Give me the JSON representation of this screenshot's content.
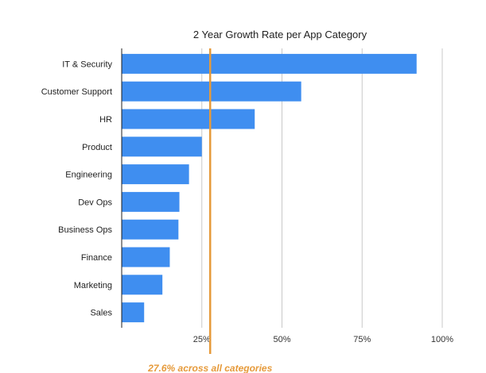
{
  "chart_data": {
    "type": "bar",
    "orientation": "horizontal",
    "title": "2 Year Growth Rate per App Category",
    "categories": [
      "IT & Security",
      "Customer Support",
      "HR",
      "Product",
      "Engineering",
      "Dev Ops",
      "Business Ops",
      "Finance",
      "Marketing",
      "Sales"
    ],
    "values": [
      92,
      56,
      41.5,
      25,
      21,
      18,
      17.7,
      15,
      12.7,
      7
    ],
    "xlim": [
      0,
      100
    ],
    "x_ticks": [
      25,
      50,
      75,
      100
    ],
    "x_tick_labels": [
      "25%",
      "50%",
      "75%",
      "100%"
    ],
    "grid": "vertical",
    "bar_color": "#3f8ef0",
    "reference_line": {
      "value": 27.6,
      "label": "27.6% across all categories",
      "color": "#e69a3a"
    }
  }
}
